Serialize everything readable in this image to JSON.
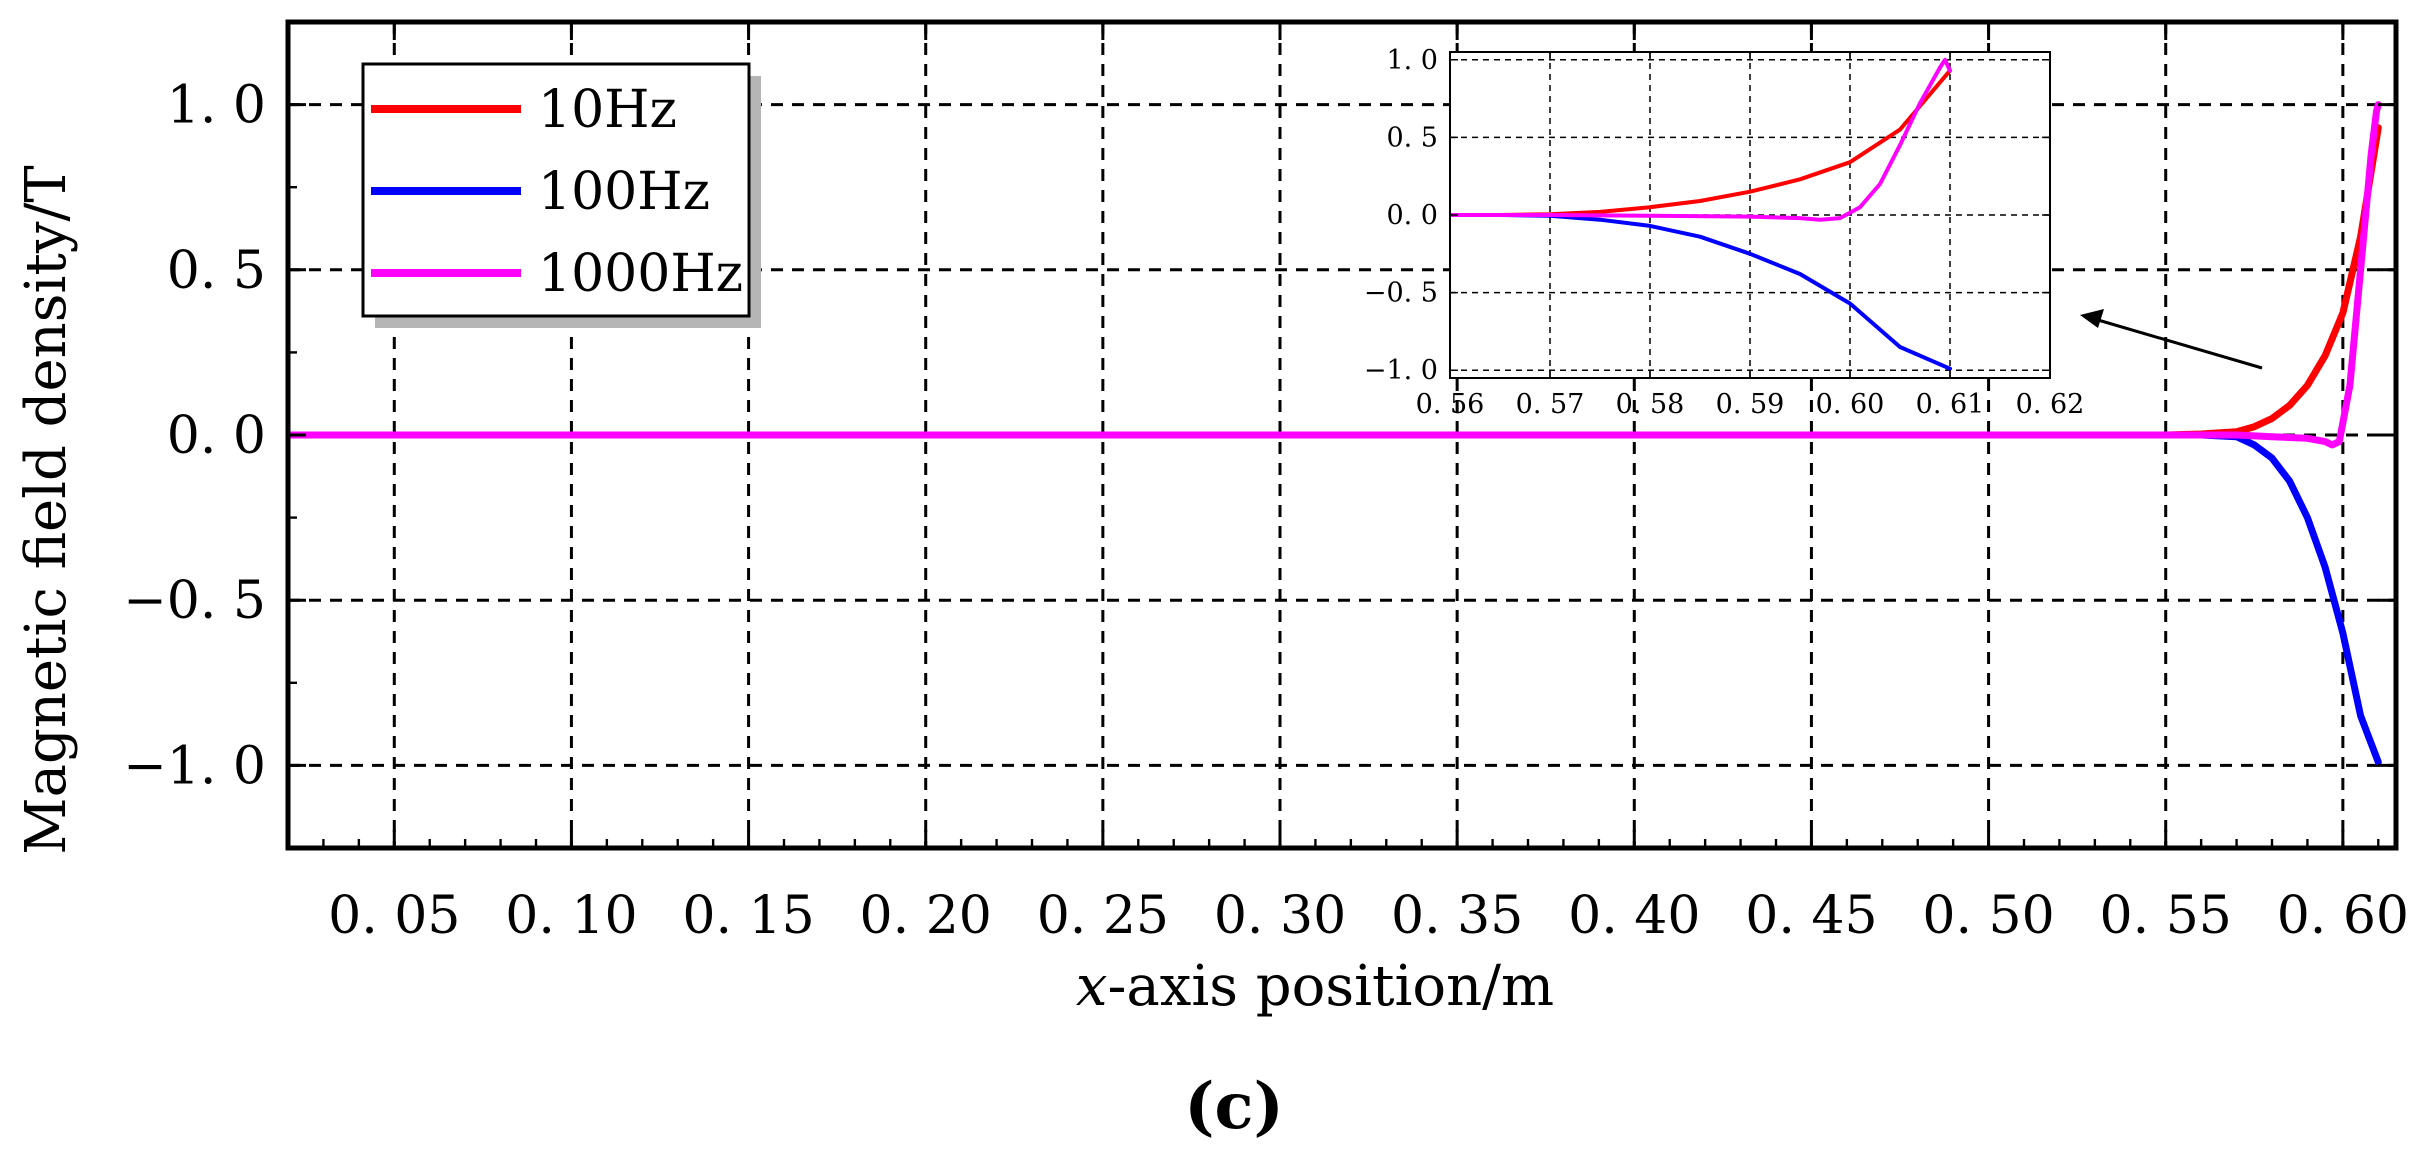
{
  "chart_data": [
    {
      "type": "line",
      "role": "main",
      "xlabel_prefix": "x",
      "xlabel_suffix": "-axis position/m",
      "ylabel": "Magnetic field density/T",
      "xlim": [
        0.02,
        0.615
      ],
      "ylim": [
        -1.25,
        1.25
      ],
      "xticks": [
        0.05,
        0.1,
        0.15,
        0.2,
        0.25,
        0.3,
        0.35,
        0.4,
        0.45,
        0.5,
        0.55,
        0.6
      ],
      "xtick_labels": [
        "0. 05",
        "0. 10",
        "0. 15",
        "0. 20",
        "0. 25",
        "0. 30",
        "0. 35",
        "0. 40",
        "0. 45",
        "0. 50",
        "0. 55",
        "0. 60"
      ],
      "yticks": [
        -1.0,
        -0.5,
        0.0,
        0.5,
        1.0
      ],
      "ytick_labels": [
        "−1. 0",
        "−0. 5",
        "0. 0",
        "0. 5",
        "1. 0"
      ],
      "grid": true,
      "legend_position": "top-left",
      "series": [
        {
          "name": "10Hz",
          "color": "#ff0000",
          "x": [
            0.02,
            0.5,
            0.55,
            0.56,
            0.57,
            0.575,
            0.58,
            0.585,
            0.59,
            0.595,
            0.6,
            0.605,
            0.61
          ],
          "y": [
            0.0,
            0.0,
            0.0,
            0.003,
            0.01,
            0.025,
            0.05,
            0.09,
            0.15,
            0.24,
            0.37,
            0.6,
            0.93
          ]
        },
        {
          "name": "100Hz",
          "color": "#0000ff",
          "x": [
            0.02,
            0.5,
            0.55,
            0.56,
            0.57,
            0.575,
            0.58,
            0.585,
            0.59,
            0.595,
            0.6,
            0.605,
            0.61
          ],
          "y": [
            0.0,
            0.0,
            0.0,
            0.0,
            -0.005,
            -0.03,
            -0.07,
            -0.14,
            -0.25,
            -0.4,
            -0.6,
            -0.85,
            -0.99
          ]
        },
        {
          "name": "1000Hz",
          "color": "#ff00ff",
          "x": [
            0.02,
            0.5,
            0.55,
            0.57,
            0.58,
            0.59,
            0.595,
            0.597,
            0.599,
            0.602,
            0.605,
            0.608,
            0.6095,
            0.61
          ],
          "y": [
            0.0,
            0.0,
            0.0,
            0.0,
            -0.005,
            -0.01,
            -0.02,
            -0.03,
            -0.02,
            0.15,
            0.5,
            0.85,
            0.98,
            1.0
          ]
        }
      ]
    },
    {
      "type": "line",
      "role": "inset",
      "xlim": [
        0.56,
        0.62
      ],
      "ylim": [
        -1.05,
        1.05
      ],
      "xticks": [
        0.56,
        0.57,
        0.58,
        0.59,
        0.6,
        0.61,
        0.62
      ],
      "xtick_labels": [
        "0. 56",
        "0. 57",
        "0. 58",
        "0. 59",
        "0. 60",
        "0. 61",
        "0. 62"
      ],
      "yticks": [
        -1.0,
        -0.5,
        0.0,
        0.5,
        1.0
      ],
      "ytick_labels": [
        "−1. 0",
        "−0. 5",
        "0. 0",
        "0. 5",
        "1. 0"
      ],
      "grid": true,
      "series": [
        {
          "name": "10Hz",
          "color": "#ff0000",
          "x": [
            0.56,
            0.565,
            0.57,
            0.575,
            0.58,
            0.585,
            0.59,
            0.595,
            0.6,
            0.605,
            0.61
          ],
          "y": [
            0.0,
            0.0,
            0.005,
            0.02,
            0.05,
            0.09,
            0.15,
            0.23,
            0.34,
            0.55,
            0.93
          ]
        },
        {
          "name": "100Hz",
          "color": "#0000ff",
          "x": [
            0.56,
            0.565,
            0.57,
            0.575,
            0.58,
            0.585,
            0.59,
            0.595,
            0.6,
            0.605,
            0.61
          ],
          "y": [
            0.0,
            0.0,
            -0.005,
            -0.03,
            -0.07,
            -0.14,
            -0.25,
            -0.38,
            -0.57,
            -0.85,
            -0.99
          ]
        },
        {
          "name": "1000Hz",
          "color": "#ff00ff",
          "x": [
            0.56,
            0.57,
            0.58,
            0.59,
            0.595,
            0.597,
            0.599,
            0.601,
            0.603,
            0.605,
            0.607,
            0.609,
            0.6095,
            0.61
          ],
          "y": [
            0.0,
            0.0,
            -0.005,
            -0.01,
            -0.02,
            -0.03,
            -0.02,
            0.05,
            0.2,
            0.45,
            0.72,
            0.95,
            1.0,
            0.93
          ]
        }
      ]
    }
  ],
  "caption": "(c)"
}
